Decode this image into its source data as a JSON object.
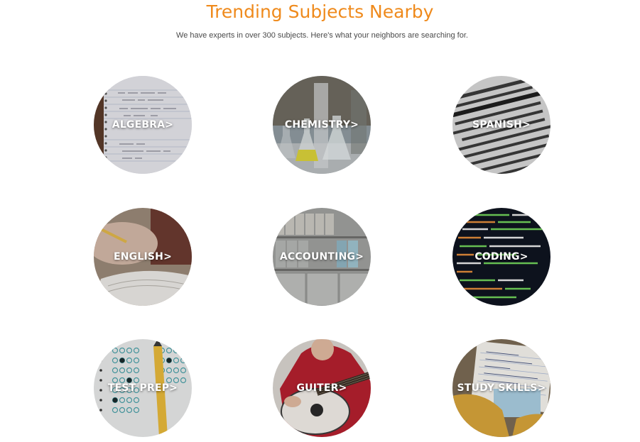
{
  "header": {
    "title": "Trending Subjects Nearby",
    "subtitle": "We have experts in over 300 subjects. Here's what your neighbors are searching for."
  },
  "subjects": [
    {
      "label": "ALGEBRA>"
    },
    {
      "label": "CHEMISTRY>"
    },
    {
      "label": "SPANISH>"
    },
    {
      "label": "ENGLISH>"
    },
    {
      "label": "ACCOUNTING>"
    },
    {
      "label": "CODING>"
    },
    {
      "label": "TEST PREP>"
    },
    {
      "label": "GUITER>"
    },
    {
      "label": "STUDY SKILLS>"
    }
  ],
  "colors": {
    "title": "#ef8a1c",
    "subtitle": "#4a4a4a",
    "label": "#ffffff"
  }
}
